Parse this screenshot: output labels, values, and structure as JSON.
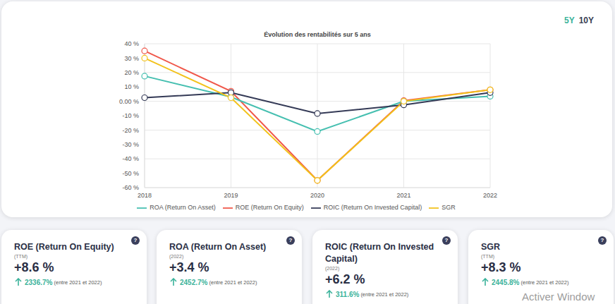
{
  "chart_data": {
    "type": "line",
    "title": "Évolution des rentabilités sur 5 ans",
    "categories": [
      "2018",
      "2019",
      "2020",
      "2021",
      "2022"
    ],
    "series": [
      {
        "name": "ROE (Return On Equity)",
        "color": "#f0574a",
        "marker": "circle",
        "values": [
          35,
          7,
          -55,
          0.5,
          8
        ]
      },
      {
        "name": "ROA (Return On Asset)",
        "color": "#45bfb0",
        "marker": "circle",
        "values": [
          17.5,
          3,
          -21,
          0,
          3.5
        ]
      },
      {
        "name": "ROIC (Return On Invested Capital)",
        "color": "#343a56",
        "marker": "circle",
        "values": [
          2.5,
          6,
          -8.5,
          -2.5,
          6
        ]
      },
      {
        "name": "SGR",
        "color": "#f2c21b",
        "marker": "circle",
        "values": [
          30,
          2.5,
          -55,
          0,
          8
        ]
      }
    ],
    "ylim": [
      -60,
      40
    ],
    "yticks": [
      {
        "value": -60,
        "label": "-60 %"
      },
      {
        "value": -50,
        "label": "-50 %"
      },
      {
        "value": -40,
        "label": "-40 %"
      },
      {
        "value": -30,
        "label": "-30 %"
      },
      {
        "value": -20,
        "label": "-20 %"
      },
      {
        "value": -10,
        "label": "-10 %"
      },
      {
        "value": 0,
        "label": "0.00 %"
      },
      {
        "value": 10,
        "label": "10 %"
      },
      {
        "value": 20,
        "label": "20 %"
      },
      {
        "value": 30,
        "label": "30 %"
      },
      {
        "value": 40,
        "label": "40 %"
      }
    ],
    "grid": true,
    "legend": "bottom"
  },
  "tabs": {
    "items": [
      "5Y",
      "10Y"
    ],
    "active": 0
  },
  "help_icon": "?",
  "cards": [
    {
      "title": "ROE (Return On Equity)",
      "period": "(TTM)",
      "value": "+8.6 %",
      "change": "2336.7%",
      "note": "(entre 2021 et 2022)"
    },
    {
      "title": "ROA (Return On Asset)",
      "period": "(2022)",
      "value": "+3.4 %",
      "change": "2452.7%",
      "note": "(entre 2021 et 2022)"
    },
    {
      "title": "ROIC (Return On Invested Capital)",
      "period": "(2022)",
      "value": "+6.2 %",
      "change": "311.6%",
      "note": "(entre 2021 et 2022)"
    },
    {
      "title": "SGR",
      "period": "(TTM)",
      "value": "+8.3 %",
      "change": "2445.8%",
      "note": "(entre 2021 et 2022)"
    }
  ],
  "watermark": "Activer Window"
}
